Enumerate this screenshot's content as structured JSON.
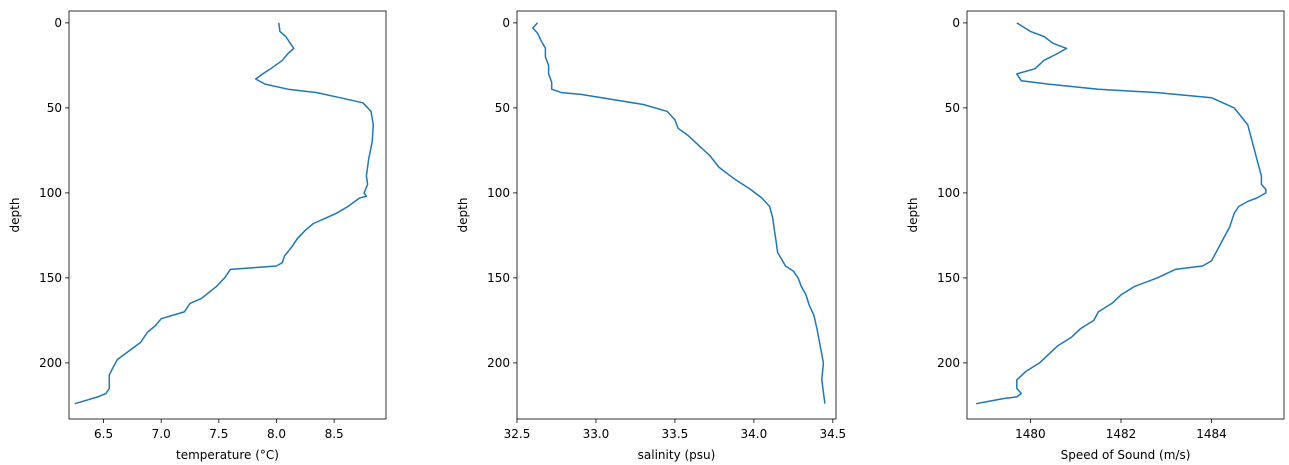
{
  "chart_data": [
    {
      "type": "line",
      "xlabel": "temperature (°C)",
      "ylabel": "depth",
      "xlim": [
        6.2,
        8.95
      ],
      "ylim": [
        233,
        -7
      ],
      "y_inverted": true,
      "xticks": [
        "6.5",
        "7.0",
        "7.5",
        "8.0",
        "8.5"
      ],
      "yticks": [
        "0",
        "50",
        "100",
        "150",
        "200"
      ],
      "line_color": "#1f77b4",
      "series": [
        {
          "x": [
            8.02,
            8.03,
            8.08,
            8.12,
            8.15,
            8.1,
            8.05,
            7.95,
            7.88,
            7.82,
            7.9,
            8.1,
            8.35,
            8.55,
            8.75,
            8.82,
            8.84,
            8.83,
            8.8,
            8.78,
            8.79,
            8.76,
            8.78,
            8.72,
            8.68,
            8.62,
            8.52,
            8.42,
            8.32,
            8.25,
            8.18,
            8.13,
            8.07,
            8.05,
            8.0,
            7.6,
            7.55,
            7.48,
            7.35,
            7.25,
            7.2,
            7.0,
            6.95,
            6.88,
            6.82,
            6.72,
            6.62,
            6.58,
            6.55,
            6.55,
            6.52,
            6.45,
            6.35,
            6.25
          ],
          "y": [
            0,
            5,
            8,
            12,
            15,
            18,
            22,
            27,
            30,
            33,
            36,
            39,
            41,
            44,
            47,
            52,
            60,
            70,
            80,
            90,
            95,
            100,
            102,
            103,
            105,
            108,
            112,
            115,
            118,
            122,
            127,
            132,
            137,
            141,
            143,
            145,
            150,
            155,
            162,
            165,
            170,
            174,
            178,
            182,
            188,
            193,
            198,
            203,
            207,
            215,
            218,
            220,
            222,
            224
          ]
        }
      ]
    },
    {
      "type": "line",
      "xlabel": "salinity (psu)",
      "ylabel": "depth",
      "xlim": [
        32.5,
        34.52
      ],
      "ylim": [
        233,
        -7
      ],
      "y_inverted": true,
      "xticks": [
        "32.5",
        "33.0",
        "33.5",
        "34.0",
        "34.5"
      ],
      "yticks": [
        "0",
        "50",
        "100",
        "150",
        "200"
      ],
      "line_color": "#1f77b4",
      "series": [
        {
          "x": [
            32.63,
            32.6,
            32.63,
            32.65,
            32.68,
            32.68,
            32.7,
            32.7,
            32.72,
            32.72,
            32.78,
            32.9,
            33.1,
            33.3,
            33.45,
            33.5,
            33.52,
            33.58,
            33.65,
            33.72,
            33.78,
            33.88,
            33.98,
            34.05,
            34.1,
            34.12,
            34.13,
            34.14,
            34.15,
            34.2,
            34.25,
            34.28,
            34.3,
            34.33,
            34.35,
            34.38,
            34.4,
            34.42,
            34.44,
            34.43,
            34.45
          ],
          "y": [
            0,
            3,
            6,
            10,
            15,
            20,
            25,
            30,
            35,
            39,
            41,
            42,
            45,
            48,
            52,
            57,
            62,
            66,
            72,
            78,
            85,
            92,
            98,
            103,
            108,
            115,
            122,
            128,
            135,
            143,
            146,
            150,
            155,
            160,
            166,
            172,
            180,
            190,
            200,
            210,
            224
          ]
        }
      ]
    },
    {
      "type": "line",
      "xlabel": "Speed of Sound (m/s)",
      "ylabel": "depth",
      "xlim": [
        1478.6,
        1485.6
      ],
      "ylim": [
        233,
        -7
      ],
      "y_inverted": true,
      "xticks": [
        "1480",
        "1482",
        "1484"
      ],
      "yticks": [
        "0",
        "50",
        "100",
        "150",
        "200"
      ],
      "line_color": "#1f77b4",
      "series": [
        {
          "x": [
            1479.7,
            1480.0,
            1480.3,
            1480.5,
            1480.8,
            1480.6,
            1480.3,
            1480.1,
            1479.7,
            1479.8,
            1480.4,
            1481.5,
            1482.8,
            1484.0,
            1484.5,
            1484.8,
            1484.9,
            1485.0,
            1485.1,
            1485.1,
            1485.2,
            1485.2,
            1485.0,
            1484.8,
            1484.6,
            1484.5,
            1484.4,
            1484.2,
            1484.0,
            1483.8,
            1483.2,
            1482.8,
            1482.3,
            1482.0,
            1481.8,
            1481.5,
            1481.4,
            1481.1,
            1480.9,
            1480.6,
            1480.4,
            1480.2,
            1479.9,
            1479.7,
            1479.7,
            1479.8,
            1479.7,
            1479.4,
            1479.0,
            1478.8
          ],
          "y": [
            0,
            5,
            8,
            12,
            15,
            18,
            22,
            27,
            30,
            34,
            36,
            39,
            41,
            44,
            50,
            60,
            70,
            80,
            90,
            95,
            98,
            100,
            103,
            105,
            108,
            112,
            120,
            130,
            140,
            143,
            145,
            150,
            155,
            160,
            165,
            170,
            175,
            180,
            185,
            190,
            195,
            200,
            205,
            210,
            215,
            218,
            220,
            221,
            223,
            224
          ]
        }
      ]
    }
  ]
}
